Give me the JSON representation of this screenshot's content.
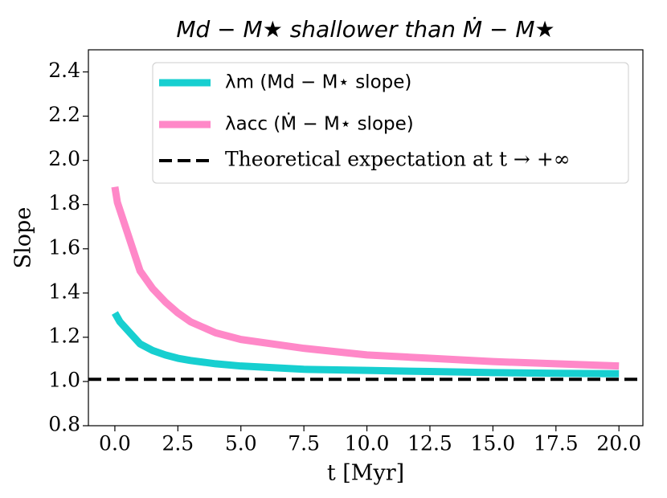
{
  "chart_data": {
    "type": "line",
    "title": "Md − M★ shallower than Ṁ − M★",
    "xlabel": "t [Myr]",
    "ylabel": "Slope",
    "xlim": [
      -1.05,
      20.95
    ],
    "ylim": [
      0.8,
      2.5
    ],
    "xticks": [
      {
        "value": 0,
        "label": "0.0"
      },
      2.5,
      {
        "value": 5,
        "label": "5.0"
      },
      7.5,
      {
        "value": 10,
        "label": "10.0"
      },
      12.5,
      {
        "value": 15,
        "label": "15.0"
      },
      17.5,
      {
        "value": 20,
        "label": "20.0"
      }
    ],
    "yticks": [
      {
        "value": 0.8,
        "label": "0.8"
      },
      {
        "value": 1,
        "label": "1.0"
      },
      1.2,
      1.4,
      1.6,
      1.8,
      {
        "value": 2,
        "label": "2.0"
      },
      2.2,
      2.4
    ],
    "legend": "upper right",
    "series": [
      {
        "name": "λm (Md − M⋆ slope)",
        "color": "#17cfd0",
        "x": [
          0,
          0.2,
          1,
          1.5,
          2,
          2.5,
          3,
          4,
          5,
          7.5,
          10,
          12.5,
          15,
          17.5,
          20
        ],
        "values": [
          1.31,
          1.27,
          1.17,
          1.14,
          1.12,
          1.105,
          1.095,
          1.08,
          1.07,
          1.055,
          1.05,
          1.045,
          1.04,
          1.037,
          1.035
        ]
      },
      {
        "name": "λacc (Ṁ − M⋆ slope)",
        "color": "#ff88c8",
        "x": [
          0,
          0.1,
          1,
          1.5,
          2,
          2.5,
          3,
          4,
          5,
          7.5,
          10,
          12.5,
          15,
          17.5,
          20
        ],
        "values": [
          1.88,
          1.81,
          1.5,
          1.42,
          1.36,
          1.31,
          1.27,
          1.22,
          1.19,
          1.15,
          1.12,
          1.105,
          1.09,
          1.08,
          1.07
        ]
      }
    ],
    "hline": {
      "name": "Theoretical expectation at t → +∞",
      "value": 1.01,
      "color": "#000000",
      "style": "dashed"
    }
  }
}
